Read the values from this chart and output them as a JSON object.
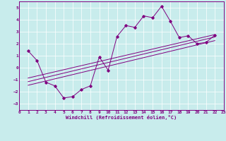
{
  "xlabel": "Windchill (Refroidissement éolien,°C)",
  "background_color": "#c8ecec",
  "grid_color": "#ffffff",
  "line_color": "#800080",
  "xlim": [
    0,
    23
  ],
  "ylim": [
    -3.5,
    5.5
  ],
  "xticks": [
    0,
    1,
    2,
    3,
    4,
    5,
    6,
    7,
    8,
    9,
    10,
    11,
    12,
    13,
    14,
    15,
    16,
    17,
    18,
    19,
    20,
    21,
    22,
    23
  ],
  "yticks": [
    -3,
    -2,
    -1,
    0,
    1,
    2,
    3,
    4,
    5
  ],
  "scatter_x": [
    1,
    2,
    3,
    4,
    5,
    6,
    7,
    8,
    9,
    10,
    11,
    12,
    13,
    14,
    15,
    16,
    17,
    18,
    19,
    20,
    21,
    22
  ],
  "scatter_y": [
    1.4,
    0.6,
    -1.2,
    -1.5,
    -2.5,
    -2.4,
    -1.8,
    -1.5,
    0.9,
    -0.2,
    2.6,
    3.5,
    3.35,
    4.3,
    4.15,
    5.1,
    3.85,
    2.5,
    2.65,
    2.0,
    2.1,
    2.7
  ],
  "line1_x": [
    1,
    22
  ],
  "line1_y": [
    -1.15,
    2.55
  ],
  "line2_x": [
    1,
    22
  ],
  "line2_y": [
    -0.85,
    2.75
  ],
  "line3_x": [
    1,
    22
  ],
  "line3_y": [
    -1.45,
    2.25
  ]
}
